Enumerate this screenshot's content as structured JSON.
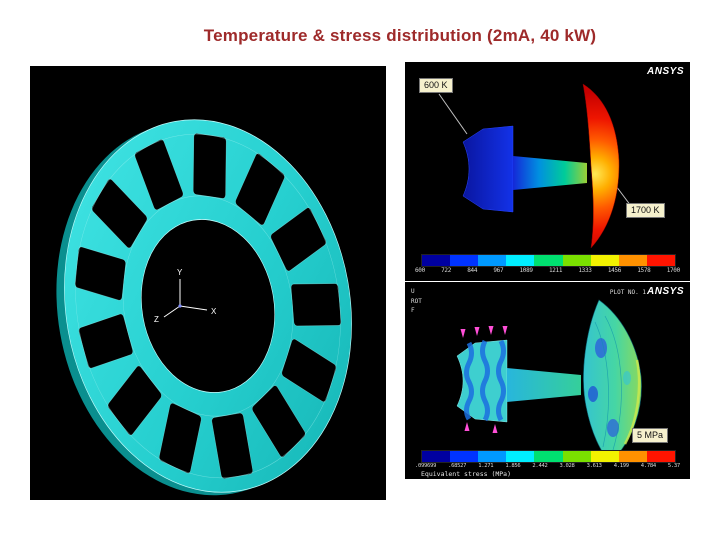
{
  "slide": {
    "title": "Temperature & stress distribution (2mA, 40 kW)",
    "title_color": "#9e2a2a",
    "background_color": "#ffffff"
  },
  "wheel_panel": {
    "wheel_color": "#2bd3d3",
    "background_color": "#000000",
    "axis_triad": {
      "x_label": "X",
      "y_label": "Y",
      "z_label": "Z"
    }
  },
  "temperature_plot": {
    "brand": "ANSYS",
    "label_cold": "600 K",
    "label_hot": "1700 K",
    "colorbar": {
      "colors": [
        "#0000a0",
        "#0033ff",
        "#0099ff",
        "#00eeff",
        "#00e070",
        "#7ae000",
        "#f2f200",
        "#ff9100",
        "#ff1400"
      ],
      "ticks": [
        "600",
        "722",
        "844",
        "967",
        "1089",
        "1211",
        "1333",
        "1456",
        "1578",
        "1700"
      ]
    }
  },
  "stress_plot": {
    "brand": "ANSYS",
    "plot_no": "PLOT NO. 1",
    "meta_lines": [
      "U",
      "ROT",
      "F"
    ],
    "label_max": "5 MPa",
    "caption": "Equivalent stress (MPa)",
    "colorbar": {
      "colors": [
        "#0000a0",
        "#0033ff",
        "#0099ff",
        "#00eeff",
        "#00e070",
        "#7ae000",
        "#f2f200",
        "#ff9100",
        "#ff1400"
      ],
      "ticks": [
        ".099699",
        ".68527",
        "1.271",
        "1.856",
        "2.442",
        "3.028",
        "3.613",
        "4.199",
        "4.784",
        "5.37"
      ]
    }
  }
}
